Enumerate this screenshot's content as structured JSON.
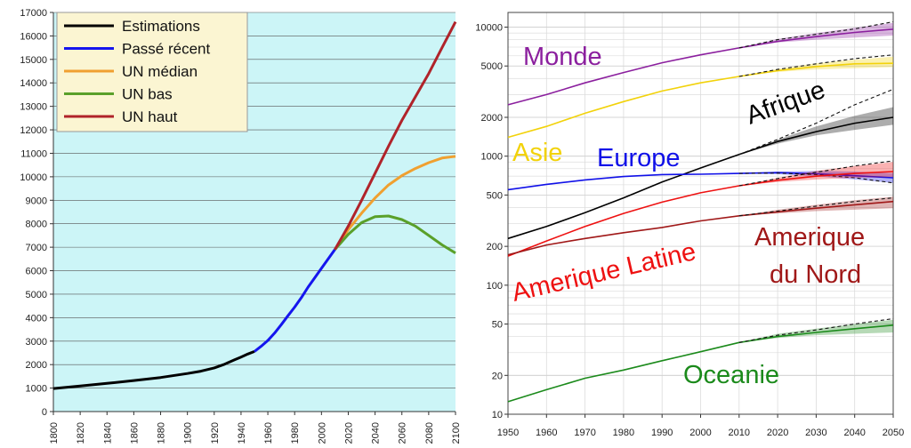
{
  "chart_data": [
    {
      "type": "line",
      "title": "",
      "xlabel": "",
      "ylabel": "",
      "xlim": [
        1800,
        2100
      ],
      "ylim": [
        0,
        17000
      ],
      "x_ticks": [
        "1800",
        "1820",
        "1840",
        "1860",
        "1880",
        "1900",
        "1920",
        "1940",
        "1960",
        "1980",
        "2000",
        "2020",
        "2040",
        "2060",
        "2080",
        "2100"
      ],
      "y_ticks": [
        "0",
        "1000",
        "2000",
        "3000",
        "4000",
        "5000",
        "6000",
        "7000",
        "8000",
        "9000",
        "10000",
        "11000",
        "12000",
        "13000",
        "14000",
        "15000",
        "16000",
        "17000"
      ],
      "grid": true,
      "legend_position": "top-left",
      "background_color": "#ccf5f7",
      "series": [
        {
          "name": "Estimations",
          "color": "#000000",
          "x": [
            1800,
            1820,
            1840,
            1860,
            1880,
            1900,
            1910,
            1920,
            1927,
            1935,
            1940,
            1945,
            1950
          ],
          "y": [
            980,
            1090,
            1200,
            1320,
            1450,
            1620,
            1720,
            1860,
            2000,
            2200,
            2320,
            2450,
            2560
          ]
        },
        {
          "name": "Passé récent",
          "color": "#1515ee",
          "x": [
            1950,
            1955,
            1960,
            1965,
            1970,
            1975,
            1980,
            1985,
            1990,
            1995,
            2000,
            2005,
            2010
          ],
          "y": [
            2560,
            2780,
            3030,
            3340,
            3700,
            4080,
            4450,
            4850,
            5300,
            5700,
            6100,
            6500,
            6900
          ]
        },
        {
          "name": "UN médian",
          "color": "#f0a030",
          "x": [
            2010,
            2020,
            2030,
            2040,
            2050,
            2060,
            2070,
            2080,
            2090,
            2100
          ],
          "y": [
            6900,
            7750,
            8450,
            9100,
            9650,
            10050,
            10350,
            10600,
            10800,
            10870
          ]
        },
        {
          "name": "UN  bas",
          "color": "#5aa02a",
          "x": [
            2010,
            2020,
            2030,
            2040,
            2050,
            2060,
            2070,
            2080,
            2090,
            2100
          ],
          "y": [
            6900,
            7550,
            8050,
            8300,
            8330,
            8180,
            7900,
            7500,
            7100,
            6750
          ]
        },
        {
          "name": "UN haut",
          "color": "#b0232a",
          "x": [
            2010,
            2020,
            2030,
            2040,
            2050,
            2060,
            2070,
            2080,
            2090,
            2100
          ],
          "y": [
            6900,
            7900,
            9000,
            10150,
            11300,
            12400,
            13400,
            14400,
            15500,
            16600
          ]
        }
      ]
    },
    {
      "type": "line",
      "title": "",
      "xlabel": "",
      "ylabel": "",
      "xlim": [
        1950,
        2050
      ],
      "ylim": [
        10,
        13000
      ],
      "yscale": "log",
      "x_ticks": [
        "1950",
        "1960",
        "1970",
        "1980",
        "1990",
        "2000",
        "2010",
        "2020",
        "2030",
        "2040",
        "2050"
      ],
      "y_ticks": [
        {
          "label": "10",
          "value": 10
        },
        {
          "label": "20",
          "value": 20
        },
        {
          "label": "50",
          "value": 50
        },
        {
          "label": "100",
          "value": 100
        },
        {
          "label": "200",
          "value": 200
        },
        {
          "label": "500",
          "value": 500
        },
        {
          "label": "1000",
          "value": 1000
        },
        {
          "label": "2000",
          "value": 2000
        },
        {
          "label": "5000",
          "value": 5000
        },
        {
          "label": "10000",
          "value": 10000
        }
      ],
      "grid": true,
      "legend_position": "none",
      "series": [
        {
          "name": "Monde",
          "color": "#8b1f9e",
          "x": [
            1950,
            1960,
            1970,
            1980,
            1990,
            2000,
            2010,
            2020,
            2030,
            2040,
            2050
          ],
          "y": [
            2500,
            3000,
            3700,
            4450,
            5300,
            6100,
            6900,
            7750,
            8450,
            9100,
            9650
          ],
          "dashed": [
            8000,
            8800,
            9700,
            11000
          ],
          "band": [
            [
              7600,
              8100
            ],
            [
              8000,
              9000
            ],
            [
              8300,
              9900
            ],
            [
              8600,
              10800
            ]
          ]
        },
        {
          "name": "Asie",
          "color": "#f2d20a",
          "x": [
            1950,
            1960,
            1970,
            1980,
            1990,
            2000,
            2010,
            2020,
            2030,
            2040,
            2050
          ],
          "y": [
            1400,
            1700,
            2150,
            2650,
            3200,
            3700,
            4150,
            4600,
            4950,
            5200,
            5250
          ],
          "dashed": [
            4700,
            5200,
            5700,
            6100
          ],
          "band": [
            [
              4500,
              4750
            ],
            [
              4700,
              5250
            ],
            [
              4800,
              5600
            ],
            [
              4900,
              5900
            ]
          ]
        },
        {
          "name": "Afrique",
          "color": "#000000",
          "x": [
            1950,
            1960,
            1970,
            1980,
            1990,
            2000,
            2010,
            2020,
            2030,
            2040,
            2050
          ],
          "y": [
            230,
            285,
            365,
            475,
            630,
            810,
            1030,
            1300,
            1550,
            1800,
            2000
          ],
          "dashed": [
            1350,
            1800,
            2500,
            3300
          ],
          "band": [
            [
              1250,
              1340
            ],
            [
              1450,
              1700
            ],
            [
              1600,
              2050
            ],
            [
              1750,
              2400
            ]
          ]
        },
        {
          "name": "Europe",
          "color": "#1010e8",
          "x": [
            1950,
            1960,
            1970,
            1980,
            1990,
            2000,
            2010,
            2020,
            2030,
            2040,
            2050
          ],
          "y": [
            550,
            605,
            655,
            695,
            720,
            725,
            735,
            745,
            730,
            705,
            680
          ],
          "dashed": [
            740,
            720,
            680,
            620
          ],
          "band": [
            [
              725,
              760
            ],
            [
              700,
              770
            ],
            [
              660,
              760
            ],
            [
              620,
              740
            ]
          ]
        },
        {
          "name": "Amerique Latine",
          "color": "#ee1111",
          "x": [
            1950,
            1960,
            1970,
            1980,
            1990,
            2000,
            2010,
            2020,
            2030,
            2040,
            2050
          ],
          "y": [
            168,
            220,
            285,
            360,
            440,
            520,
            590,
            650,
            700,
            735,
            760
          ],
          "dashed": [
            670,
            750,
            840,
            920
          ],
          "band": [
            [
              630,
              680
            ],
            [
              660,
              770
            ],
            [
              680,
              840
            ],
            [
              690,
              900
            ]
          ]
        },
        {
          "name": "Amerique du Nord",
          "color": "#a01818",
          "x": [
            1950,
            1960,
            1970,
            1980,
            1990,
            2000,
            2010,
            2020,
            2030,
            2040,
            2050
          ],
          "y": [
            172,
            205,
            230,
            255,
            280,
            315,
            345,
            370,
            395,
            420,
            445
          ],
          "dashed": [
            375,
            410,
            445,
            475
          ],
          "band": [
            [
              360,
              385
            ],
            [
              375,
              420
            ],
            [
              385,
              455
            ],
            [
              395,
              485
            ]
          ]
        },
        {
          "name": "Oceanie",
          "color": "#1b8a1b",
          "x": [
            1950,
            1960,
            1970,
            1980,
            1990,
            2000,
            2010,
            2020,
            2030,
            2040,
            2050
          ],
          "y": [
            12.5,
            15.5,
            19,
            22,
            26,
            30.5,
            36,
            40,
            43,
            46,
            49
          ],
          "dashed": [
            41,
            45,
            50,
            55
          ],
          "band": [
            [
              39,
              42
            ],
            [
              41,
              46
            ],
            [
              42,
              50
            ],
            [
              43,
              54
            ]
          ]
        }
      ]
    }
  ]
}
